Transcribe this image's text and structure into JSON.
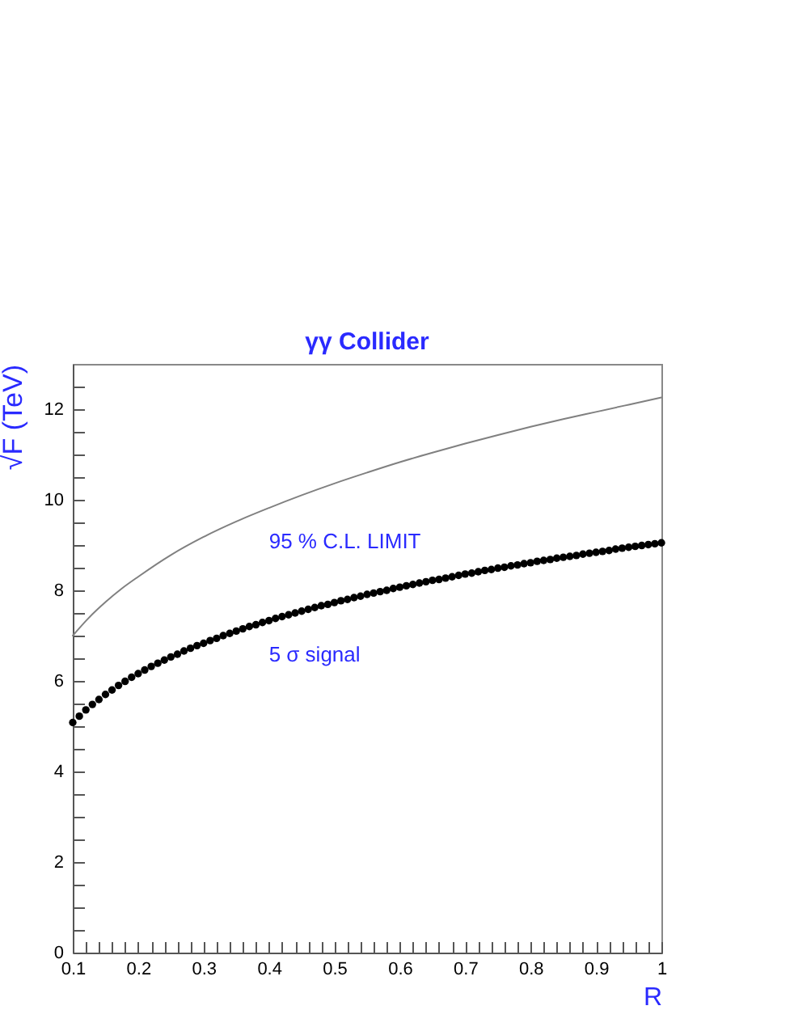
{
  "chart_data": {
    "type": "line",
    "title": "γγ Collider",
    "xlabel": "R",
    "ylabel": "√F (TeV)",
    "xlim": [
      0.1,
      1
    ],
    "ylim": [
      0,
      13
    ],
    "xticks": [
      0.1,
      {
        "value": 0.12,
        "label": null
      },
      {
        "value": 0.14,
        "label": null
      },
      {
        "value": 0.16,
        "label": null
      },
      {
        "value": 0.18,
        "label": null
      },
      0.2,
      {
        "value": 0.22,
        "label": null
      },
      {
        "value": 0.24,
        "label": null
      },
      {
        "value": 0.26,
        "label": null
      },
      {
        "value": 0.28,
        "label": null
      },
      0.3,
      {
        "value": 0.32,
        "label": null
      },
      {
        "value": 0.34,
        "label": null
      },
      {
        "value": 0.36,
        "label": null
      },
      {
        "value": 0.38,
        "label": null
      },
      0.4,
      {
        "value": 0.42,
        "label": null
      },
      {
        "value": 0.44,
        "label": null
      },
      {
        "value": 0.46,
        "label": null
      },
      {
        "value": 0.48,
        "label": null
      },
      0.5,
      {
        "value": 0.52,
        "label": null
      },
      {
        "value": 0.54,
        "label": null
      },
      {
        "value": 0.56,
        "label": null
      },
      {
        "value": 0.58,
        "label": null
      },
      0.6,
      {
        "value": 0.62,
        "label": null
      },
      {
        "value": 0.64,
        "label": null
      },
      {
        "value": 0.66,
        "label": null
      },
      {
        "value": 0.68,
        "label": null
      },
      0.7,
      {
        "value": 0.72,
        "label": null
      },
      {
        "value": 0.74,
        "label": null
      },
      {
        "value": 0.76,
        "label": null
      },
      {
        "value": 0.78,
        "label": null
      },
      0.8,
      {
        "value": 0.82,
        "label": null
      },
      {
        "value": 0.84,
        "label": null
      },
      {
        "value": 0.86,
        "label": null
      },
      {
        "value": 0.88,
        "label": null
      },
      0.9,
      {
        "value": 0.92,
        "label": null
      },
      {
        "value": 0.94,
        "label": null
      },
      {
        "value": 0.96,
        "label": null
      },
      {
        "value": 0.98,
        "label": null
      },
      1
    ],
    "yticks": [
      0,
      {
        "value": 0.5,
        "label": null
      },
      {
        "value": 1,
        "label": null
      },
      {
        "value": 1.5,
        "label": null
      },
      2,
      {
        "value": 2.5,
        "label": null
      },
      {
        "value": 3,
        "label": null
      },
      {
        "value": 3.5,
        "label": null
      },
      4,
      {
        "value": 4.5,
        "label": null
      },
      {
        "value": 5,
        "label": null
      },
      {
        "value": 5.5,
        "label": null
      },
      6,
      {
        "value": 6.5,
        "label": null
      },
      {
        "value": 7,
        "label": null
      },
      {
        "value": 7.5,
        "label": null
      },
      8,
      {
        "value": 8.5,
        "label": null
      },
      {
        "value": 9,
        "label": null
      },
      {
        "value": 9.5,
        "label": null
      },
      10,
      {
        "value": 10.5,
        "label": null
      },
      {
        "value": 11,
        "label": null
      },
      {
        "value": 11.5,
        "label": null
      },
      12,
      {
        "value": 12.5,
        "label": null
      }
    ],
    "series": [
      {
        "name": "95 % C.L. LIMIT",
        "type": "line",
        "color": "#808080",
        "x": [
          0.1,
          0.125,
          0.15,
          0.175,
          0.2,
          0.25,
          0.3,
          0.35,
          0.4,
          0.45,
          0.5,
          0.55,
          0.6,
          0.65,
          0.7,
          0.75,
          0.8,
          0.85,
          0.9,
          0.95,
          1
        ],
        "values": [
          7.0,
          7.4,
          7.74,
          8.04,
          8.3,
          8.78,
          9.18,
          9.52,
          9.82,
          10.1,
          10.36,
          10.6,
          10.83,
          11.04,
          11.24,
          11.43,
          11.61,
          11.78,
          11.94,
          12.1,
          12.26
        ]
      },
      {
        "name": "5 σ signal",
        "type": "scatter",
        "marker": "circle",
        "color": "#000000",
        "x": [
          0.1,
          0.11,
          0.12,
          0.13,
          0.14,
          0.15,
          0.16,
          0.17,
          0.18,
          0.19,
          0.2,
          0.21,
          0.22,
          0.23,
          0.24,
          0.25,
          0.26,
          0.27,
          0.28,
          0.29,
          0.3,
          0.31,
          0.32,
          0.33,
          0.34,
          0.35,
          0.36,
          0.37,
          0.38,
          0.39,
          0.4,
          0.41,
          0.42,
          0.43,
          0.44,
          0.45,
          0.46,
          0.47,
          0.48,
          0.49,
          0.5,
          0.51,
          0.52,
          0.53,
          0.54,
          0.55,
          0.56,
          0.57,
          0.58,
          0.59,
          0.6,
          0.61,
          0.62,
          0.63,
          0.64,
          0.65,
          0.66,
          0.67,
          0.68,
          0.69,
          0.7,
          0.71,
          0.72,
          0.73,
          0.74,
          0.75,
          0.76,
          0.77,
          0.78,
          0.79,
          0.8,
          0.81,
          0.82,
          0.83,
          0.84,
          0.85,
          0.86,
          0.87,
          0.88,
          0.89,
          0.9,
          0.91,
          0.92,
          0.93,
          0.94,
          0.95,
          0.96,
          0.97,
          0.98,
          0.99,
          1
        ],
        "values": [
          5.08,
          5.22,
          5.36,
          5.48,
          5.59,
          5.7,
          5.8,
          5.9,
          5.99,
          6.08,
          6.16,
          6.24,
          6.32,
          6.39,
          6.46,
          6.53,
          6.59,
          6.66,
          6.72,
          6.78,
          6.83,
          6.89,
          6.94,
          7.0,
          7.05,
          7.1,
          7.15,
          7.2,
          7.24,
          7.29,
          7.33,
          7.38,
          7.42,
          7.46,
          7.5,
          7.54,
          7.58,
          7.62,
          7.66,
          7.69,
          7.73,
          7.77,
          7.8,
          7.84,
          7.87,
          7.91,
          7.94,
          7.97,
          8.0,
          8.04,
          8.07,
          8.1,
          8.13,
          8.16,
          8.19,
          8.22,
          8.24,
          8.27,
          8.3,
          8.33,
          8.36,
          8.38,
          8.41,
          8.44,
          8.46,
          8.49,
          8.51,
          8.54,
          8.56,
          8.59,
          8.61,
          8.64,
          8.66,
          8.68,
          8.71,
          8.73,
          8.75,
          8.77,
          8.8,
          8.82,
          8.84,
          8.86,
          8.88,
          8.91,
          8.93,
          8.95,
          8.97,
          8.99,
          9.01,
          9.03,
          9.05
        ]
      }
    ]
  }
}
